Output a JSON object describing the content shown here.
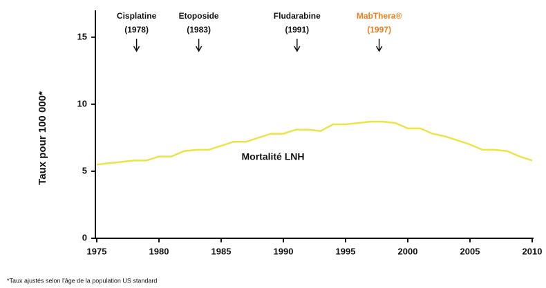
{
  "chart_data": {
    "type": "line",
    "ylabel": "Taux pour 100 000*",
    "series_label": "Mortalité LNH",
    "footnote": "*Taux ajustés selon l'âge de la population US standard",
    "x": [
      1975,
      1976,
      1977,
      1978,
      1979,
      1980,
      1981,
      1982,
      1983,
      1984,
      1985,
      1986,
      1987,
      1988,
      1989,
      1990,
      1991,
      1992,
      1993,
      1994,
      1995,
      1996,
      1997,
      1998,
      1999,
      2000,
      2001,
      2002,
      2003,
      2004,
      2005,
      2006,
      2007,
      2008,
      2009,
      2010
    ],
    "series": [
      {
        "name": "Mortalité LNH",
        "color": "#ece24a",
        "values": [
          5.5,
          5.6,
          5.7,
          5.8,
          5.8,
          6.1,
          6.1,
          6.5,
          6.6,
          6.6,
          6.9,
          7.2,
          7.2,
          7.5,
          7.8,
          7.8,
          8.1,
          8.1,
          8.0,
          8.5,
          8.5,
          8.6,
          8.7,
          8.7,
          8.6,
          8.2,
          8.2,
          7.8,
          7.6,
          7.3,
          7.0,
          6.6,
          6.6,
          6.5,
          6.1,
          5.8
        ]
      }
    ],
    "xlim": [
      1975,
      2010
    ],
    "xticks": [
      1975,
      1980,
      1985,
      1990,
      1995,
      2000,
      2005,
      2010
    ],
    "ylim": [
      0,
      17
    ],
    "yticks": [
      0,
      5,
      10,
      15
    ],
    "annotations": [
      {
        "name": "Cisplatine",
        "year": "(1978)",
        "x": 1978.2,
        "color": "#111111"
      },
      {
        "name": "Etoposide",
        "year": "(1983)",
        "x": 1983.2,
        "color": "#111111"
      },
      {
        "name": "Fludarabine",
        "year": "(1991)",
        "x": 1991.1,
        "color": "#111111"
      },
      {
        "name": "MabThera®",
        "year": "(1997)",
        "x": 1997.7,
        "color": "#f07d1a"
      }
    ]
  }
}
